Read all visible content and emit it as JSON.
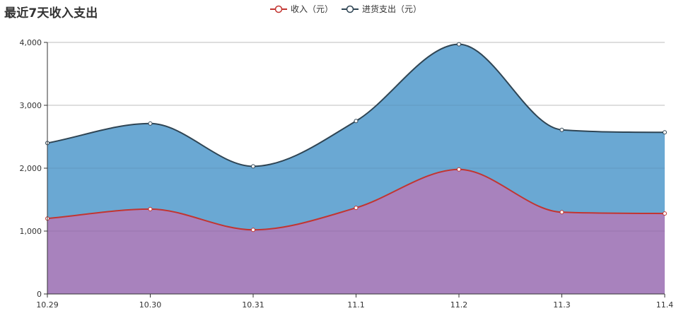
{
  "chart_data": {
    "type": "area",
    "title": "最近7天收入支出",
    "categories": [
      "10.29",
      "10.30",
      "10.31",
      "11.1",
      "11.2",
      "11.3",
      "11.4"
    ],
    "series": [
      {
        "name": "收入（元）",
        "values": [
          1200,
          1350,
          1020,
          1370,
          1980,
          1300,
          1280
        ],
        "line_color": "#c23531",
        "area_color": "#a882bd"
      },
      {
        "name": "进货支出（元）",
        "values": [
          2400,
          2710,
          2030,
          2750,
          3970,
          2610,
          2570
        ],
        "line_color": "#2f4554",
        "area_color": "#6aa8d3"
      }
    ],
    "ylim": [
      0,
      4000
    ],
    "yticks": [
      0,
      1000,
      2000,
      3000,
      4000
    ],
    "ytick_labels": [
      "0",
      "1,000",
      "2,000",
      "3,000",
      "4,000"
    ],
    "grid": true,
    "legend_position": "top-center",
    "smooth": true
  }
}
